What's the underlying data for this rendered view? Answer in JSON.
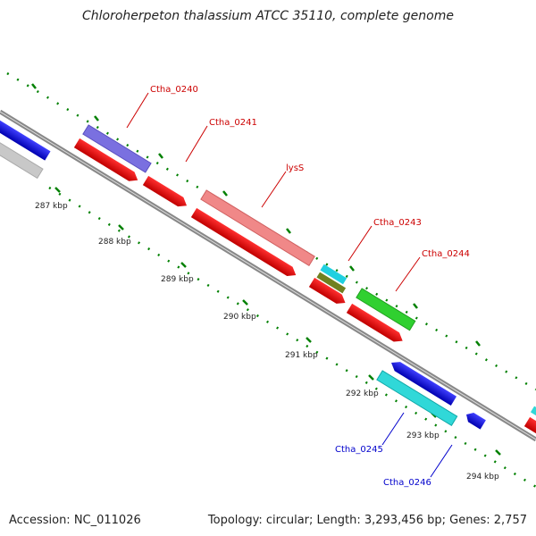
{
  "title": "Chloroherpeton thalassium ATCC 35110, complete genome",
  "footer": {
    "accession": "Accession: NC_011026",
    "summary": "Topology: circular; Length: 3,293,456 bp; Genes: 2,757"
  },
  "scale_labels": [
    "287 kbp",
    "288 kbp",
    "289 kbp",
    "290 kbp",
    "291 kbp",
    "292 kbp",
    "293 kbp",
    "294 kbp"
  ],
  "gene_labels": [
    "Ctha_0240",
    "Ctha_0241",
    "lysS",
    "Ctha_0243",
    "Ctha_0244",
    "Ctha_0245",
    "Ctha_0246"
  ],
  "colors": {
    "red": "#ff0000",
    "blue": "#0000ee",
    "tick_green": "#008000",
    "label_red": "#cc0000",
    "label_blue": "#0000cc",
    "backbone": "#888888"
  }
}
